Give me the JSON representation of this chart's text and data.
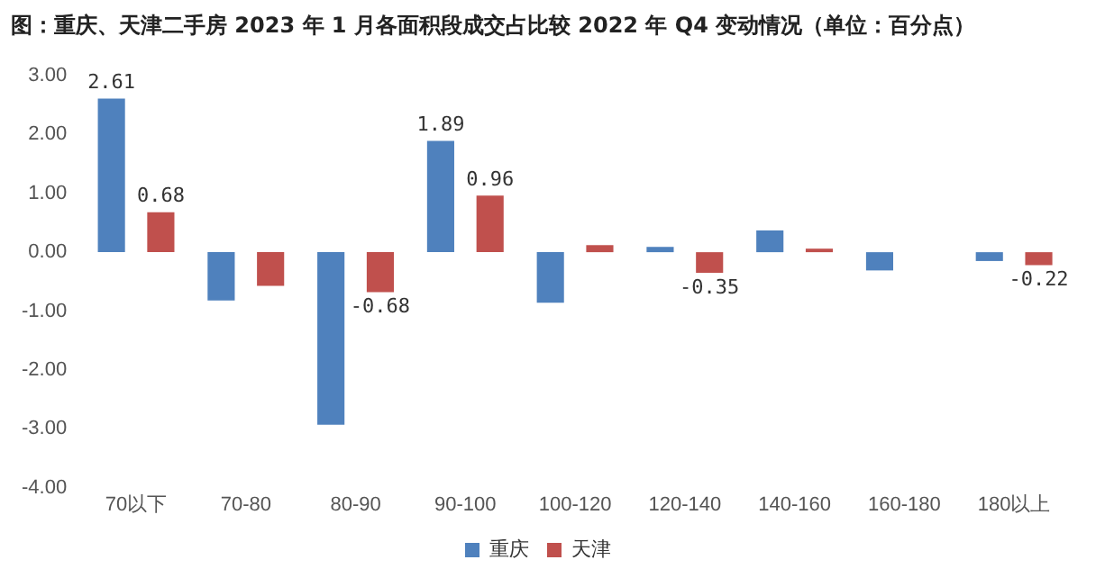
{
  "chart_data": {
    "type": "bar",
    "title": "图：重庆、天津二手房 2023 年 1 月各面积段成交占比较 2022 年 Q4 变动情况（单位：百分点）",
    "categories": [
      "70以下",
      "70-80",
      "80-90",
      "90-100",
      "100-120",
      "120-140",
      "140-160",
      "160-180",
      "180以上"
    ],
    "series": [
      {
        "name": "重庆",
        "color": "#4f81bd",
        "values": [
          2.61,
          -0.82,
          -2.93,
          1.89,
          -0.86,
          0.09,
          0.37,
          -0.31,
          -0.15
        ],
        "value_labels": [
          "2.61",
          null,
          null,
          "1.89",
          null,
          null,
          null,
          null,
          null
        ]
      },
      {
        "name": "天津",
        "color": "#c0504d",
        "values": [
          0.68,
          -0.57,
          -0.68,
          0.96,
          0.12,
          -0.35,
          0.06,
          0,
          -0.22
        ],
        "value_labels": [
          "0.68",
          null,
          "-0.68",
          "0.96",
          null,
          "-0.35",
          null,
          null,
          "-0.22"
        ]
      }
    ],
    "ylim": [
      -4,
      3
    ],
    "yticks": [
      {
        "value": -4,
        "label": "-4.00"
      },
      {
        "value": -3,
        "label": "-3.00"
      },
      {
        "value": -2,
        "label": "-2.00"
      },
      {
        "value": -1,
        "label": "-1.00"
      },
      {
        "value": 0,
        "label": "0.00"
      },
      {
        "value": 1,
        "label": "1.00"
      },
      {
        "value": 2,
        "label": "2.00"
      },
      {
        "value": 3,
        "label": "3.00"
      }
    ],
    "grid": false,
    "legend": "bottom"
  }
}
